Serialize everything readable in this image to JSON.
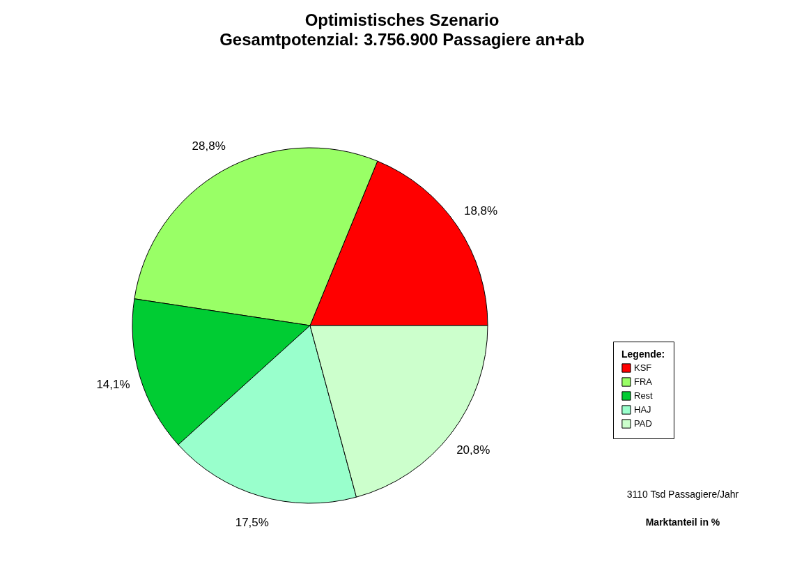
{
  "chart_data": {
    "type": "pie",
    "title": "Optimistisches Szenario",
    "subtitle": "Gesamtpotenzial: 3.756.900 Passagiere an+ab",
    "categories": [
      "KSF",
      "FRA",
      "Rest",
      "HAJ",
      "PAD"
    ],
    "values": [
      18.8,
      28.8,
      14.1,
      17.5,
      20.8
    ],
    "value_labels": [
      "18,8%",
      "28,8%",
      "14,1%",
      "17,5%",
      "20,8%"
    ],
    "colors": [
      "#ff0000",
      "#99ff66",
      "#00cc33",
      "#99ffcc",
      "#ccffcc"
    ],
    "legend": "bottom right",
    "legend_title": "Legende:",
    "annotations": [
      "3110 Tsd Passagiere/Jahr",
      "Marktanteil in %"
    ]
  }
}
